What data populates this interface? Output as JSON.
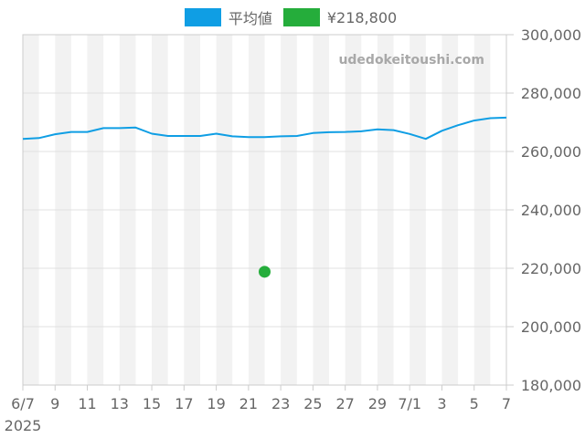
{
  "legend": {
    "average_label": "平均値",
    "price_label": "¥218,800"
  },
  "watermark": "udedokeitoushi.com",
  "colors": {
    "average": "#0f9ee4",
    "price": "#25ad3b",
    "band": "#f2f2f2"
  },
  "chart_data": {
    "type": "line",
    "title": "",
    "xlabel": "",
    "ylabel": "",
    "x_tick_labels": [
      "6/7",
      "9",
      "11",
      "13",
      "15",
      "17",
      "19",
      "21",
      "23",
      "25",
      "27",
      "29",
      "7/1",
      "3",
      "5",
      "7"
    ],
    "x_sub_label": "2025",
    "ylim": [
      180000,
      300000
    ],
    "y_ticks": [
      180000,
      200000,
      220000,
      240000,
      260000,
      280000,
      300000
    ],
    "y_tick_labels": [
      "180,000",
      "200,000",
      "220,000",
      "240,000",
      "260,000",
      "280,000",
      "300,000"
    ],
    "grid": true,
    "legend_position": "top",
    "dates": [
      "2025-06-07",
      "2025-06-08",
      "2025-06-09",
      "2025-06-10",
      "2025-06-11",
      "2025-06-12",
      "2025-06-13",
      "2025-06-14",
      "2025-06-15",
      "2025-06-16",
      "2025-06-17",
      "2025-06-18",
      "2025-06-19",
      "2025-06-20",
      "2025-06-21",
      "2025-06-22",
      "2025-06-23",
      "2025-06-24",
      "2025-06-25",
      "2025-06-26",
      "2025-06-27",
      "2025-06-28",
      "2025-06-29",
      "2025-06-30",
      "2025-07-01",
      "2025-07-02",
      "2025-07-03",
      "2025-07-04",
      "2025-07-05",
      "2025-07-06",
      "2025-07-07"
    ],
    "series": [
      {
        "name": "平均値",
        "style": "line",
        "values": [
          264300,
          264600,
          265900,
          266700,
          266700,
          268000,
          268000,
          268200,
          266100,
          265300,
          265300,
          265300,
          266100,
          265200,
          264900,
          264900,
          265200,
          265300,
          266300,
          266600,
          266700,
          266900,
          267600,
          267300,
          266000,
          264300,
          267100,
          269000,
          270600,
          271400,
          271600
        ]
      },
      {
        "name": "¥218,800",
        "style": "point",
        "points": [
          {
            "date": "2025-06-22",
            "value": 218800
          }
        ]
      }
    ]
  }
}
